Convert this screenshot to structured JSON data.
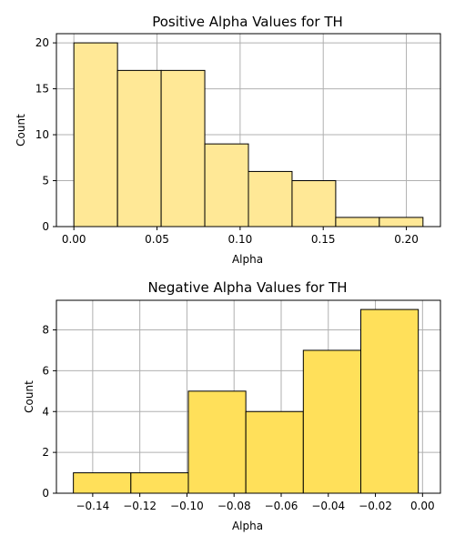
{
  "chart_data": [
    {
      "type": "bar",
      "title": "Positive Alpha Values for TH",
      "xlabel": "Alpha",
      "ylabel": "Count",
      "xlim": [
        -0.0105,
        0.2205
      ],
      "ylim": [
        0,
        21
      ],
      "xticks": [
        0.0,
        0.05,
        0.1,
        0.15,
        0.2
      ],
      "xtick_labels": [
        "0.00",
        "0.05",
        "0.10",
        "0.15",
        "0.20"
      ],
      "yticks": [
        0,
        5,
        10,
        15,
        20
      ],
      "ytick_labels": [
        "0",
        "5",
        "10",
        "15",
        "20"
      ],
      "bin_edges": [
        0.0,
        0.02625,
        0.0525,
        0.07875,
        0.105,
        0.13125,
        0.1575,
        0.18375,
        0.21
      ],
      "values": [
        20,
        17,
        17,
        9,
        6,
        5,
        1,
        1
      ],
      "grid": true,
      "color": "#ffe896",
      "edge_color": "#000000"
    },
    {
      "type": "bar",
      "title": "Negative Alpha Values for TH",
      "xlabel": "Alpha",
      "ylabel": "Count",
      "xlim": [
        -0.1554,
        0.0076
      ],
      "ylim": [
        0,
        9.45
      ],
      "xticks": [
        -0.14,
        -0.12,
        -0.1,
        -0.08,
        -0.06,
        -0.04,
        -0.02,
        0.0
      ],
      "xtick_labels": [
        "−0.14",
        "−0.12",
        "−0.10",
        "−0.08",
        "−0.06",
        "−0.04",
        "−0.02",
        "0.00"
      ],
      "yticks": [
        0,
        2,
        4,
        6,
        8
      ],
      "ytick_labels": [
        "0",
        "2",
        "4",
        "6",
        "8"
      ],
      "bin_edges": [
        -0.1482,
        -0.1238,
        -0.0994,
        -0.075,
        -0.0506,
        -0.0262,
        -0.0018
      ],
      "values": [
        1,
        1,
        5,
        4,
        7,
        9
      ],
      "grid": true,
      "color": "#ffe05a",
      "edge_color": "#000000"
    }
  ]
}
